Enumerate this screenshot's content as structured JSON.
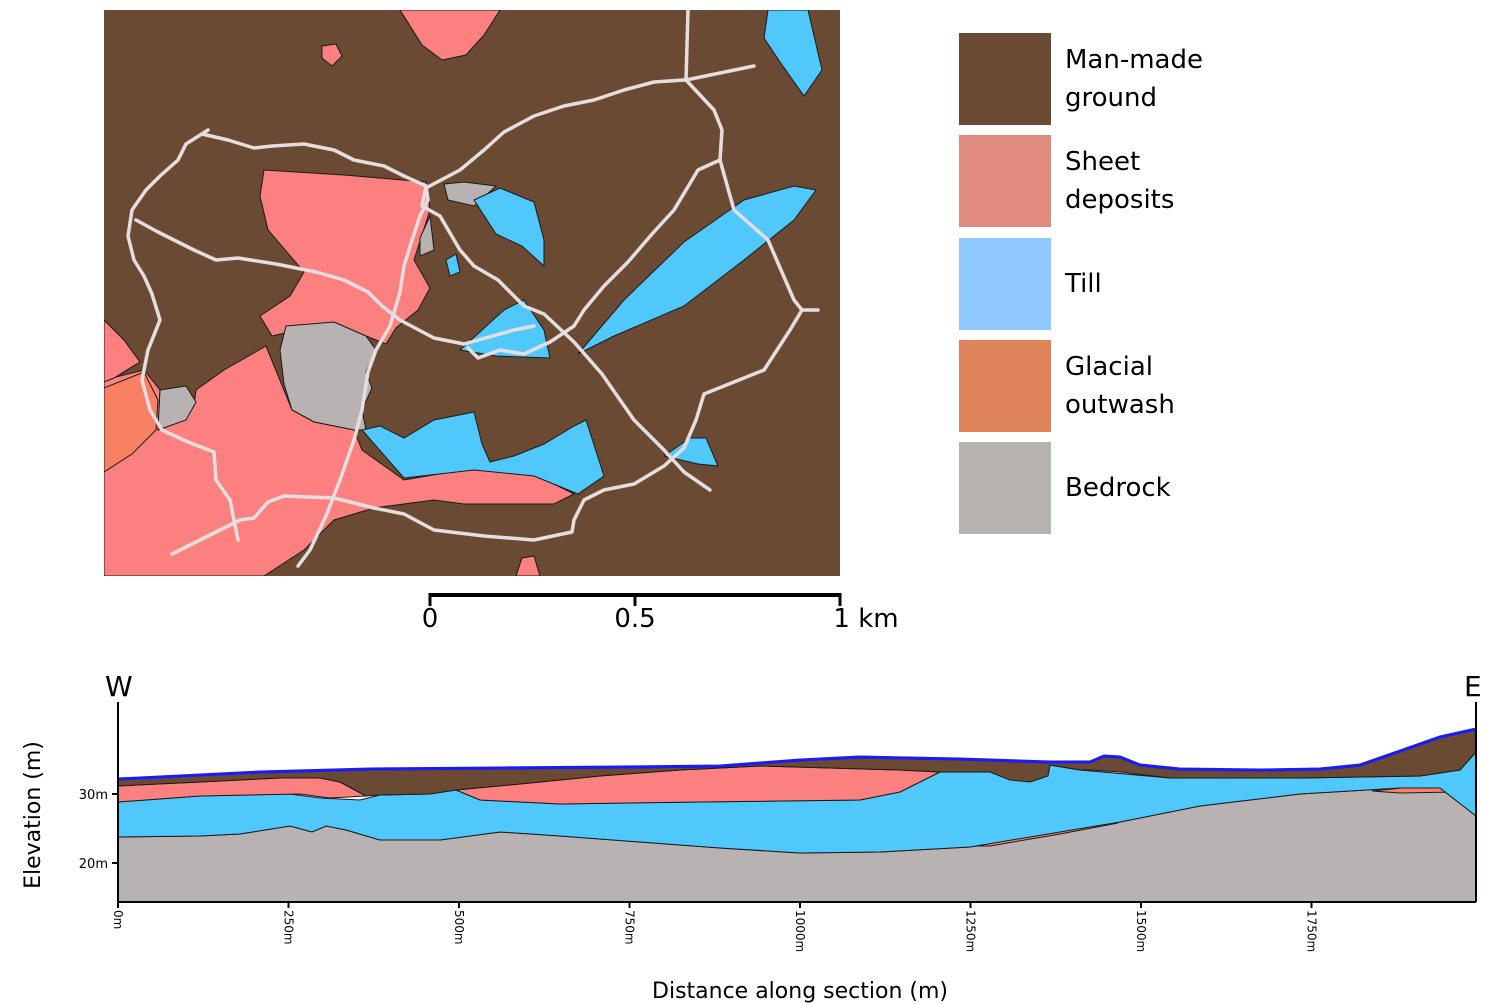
{
  "legend": [
    {
      "label": "Man-made ground",
      "color": "#6b4a33"
    },
    {
      "label": "Sheet deposits",
      "color": "#e08a80"
    },
    {
      "label": "Till",
      "color": "#8ec8ff"
    },
    {
      "label": "Glacial outwash",
      "color": "#e0845c"
    },
    {
      "label": "Bedrock",
      "color": "#b6b3b1"
    }
  ],
  "map_colors": {
    "made_ground": "#6b4a33",
    "sheet": "#fc8080",
    "till": "#50c8fc",
    "outwash": "#fa8064",
    "bedrock": "#b8b3b2",
    "roads": "#e6dede"
  },
  "scale_bar": {
    "ticks": [
      "0",
      "0.5",
      "1 km"
    ]
  },
  "cross_section": {
    "west_label": "W",
    "east_label": "E",
    "y_axis_title": "Elevation (m)",
    "x_axis_title": "Distance along section (m)",
    "y_ticks": [
      "30m",
      "20m"
    ],
    "x_ticks": [
      "0m",
      "250m",
      "500m",
      "750m",
      "1000m",
      "1250m",
      "1500m",
      "1750m"
    ],
    "surface_color": "#1a1aff"
  }
}
